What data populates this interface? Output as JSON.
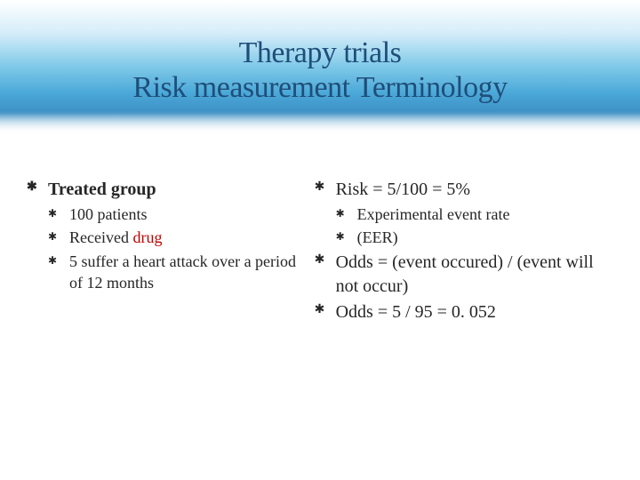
{
  "title_line1": "Therapy trials",
  "title_line2": "Risk measurement Terminology",
  "colors": {
    "title_color": "#1f4e79",
    "body_text": "#262626",
    "accent_red": "#c00000",
    "gradient_top": "#ffffff",
    "gradient_mid": "#7fc9e8",
    "gradient_low": "#3d8fc4"
  },
  "fonts": {
    "title_size_pt": 34,
    "body_size_pt": 20,
    "sub_size_pt": 18,
    "family": "Georgia"
  },
  "left": {
    "heading": "Treated group",
    "items": [
      "100 patients",
      "Received ",
      "5 suffer a heart attack over a period of 12 months"
    ],
    "drug_word": "drug"
  },
  "right": {
    "risk_line": "Risk = 5/100 = 5%",
    "risk_sub1": "Experimental event rate",
    "risk_sub2": "(EER)",
    "odds_formula": "Odds = (event occured) / (event will not occur)",
    "odds_calc": "Odds = 5 / 95 = 0. 052"
  }
}
